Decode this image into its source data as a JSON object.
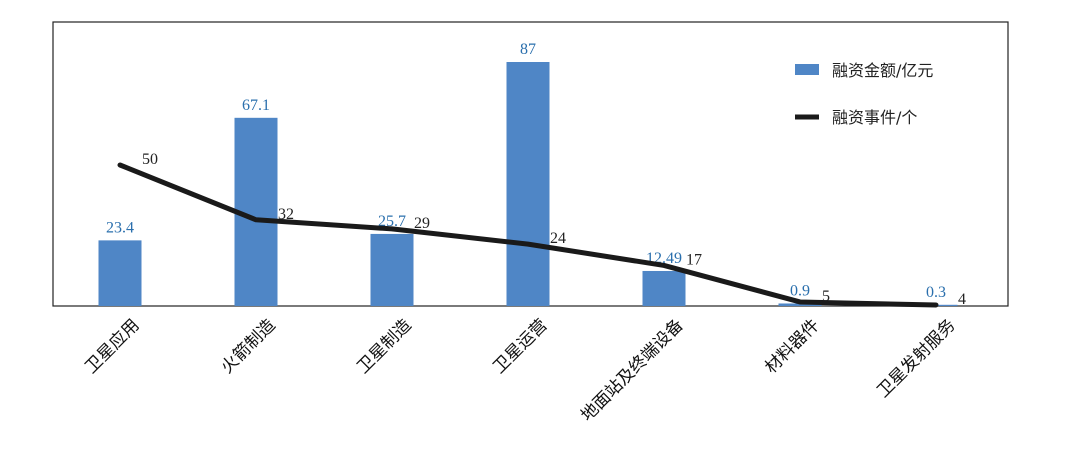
{
  "chart_data": {
    "type": "bar",
    "categories": [
      "卫星应用",
      "火箭制造",
      "卫星制造",
      "卫星运营",
      "地面站及终端设备",
      "材料器件",
      "卫星发射服务"
    ],
    "series": [
      {
        "name": "融资金额/亿元",
        "type": "bar",
        "values": [
          23.4,
          67.1,
          25.7,
          87,
          12.49,
          0.9,
          0.3
        ],
        "labels": [
          "23.4",
          "67.1",
          "25.7",
          "87",
          "12.49",
          "0.9",
          "0.3"
        ],
        "color": "#4f86c6"
      },
      {
        "name": "融资事件/个",
        "type": "line",
        "values": [
          50,
          32,
          29,
          24,
          17,
          5,
          4
        ],
        "labels": [
          "50",
          "32",
          "29",
          "24",
          "17",
          "5",
          "4"
        ],
        "color": "#1a1a1a"
      }
    ],
    "ylim_bar": [
      0,
      90
    ],
    "ylim_line": [
      0,
      70
    ],
    "legend_position": "top-right",
    "grid": false
  }
}
